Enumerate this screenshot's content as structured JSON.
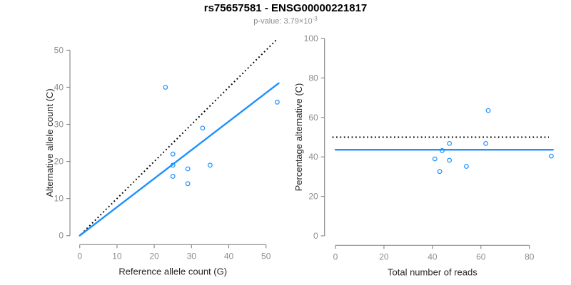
{
  "header": {
    "title": "rs75657581 - ENSG00000221817",
    "pvalue_base": "p-value: 3.79×10",
    "pvalue_exponent": "-3"
  },
  "colors": {
    "accent_blue": "#1E90FF",
    "dotted_black": "#000000",
    "axis_gray": "#8c8c8c",
    "tick_label_gray": "#8c8c8c",
    "axis_title_dark": "#262626",
    "subtitle_gray": "#8c8c8c"
  },
  "chart_data": [
    {
      "id": "allele-counts",
      "type": "scatter",
      "marker": "open-circle",
      "xlabel": "Reference allele count (G)",
      "ylabel": "Alternative allele count (C)",
      "xticks": [
        0,
        10,
        20,
        30,
        40,
        50
      ],
      "yticks": [
        0,
        10,
        20,
        30,
        40,
        50
      ],
      "xlim": [
        0,
        53.5
      ],
      "ylim": [
        0,
        53.5
      ],
      "grid": false,
      "points": [
        [
          23,
          40
        ],
        [
          53,
          36
        ],
        [
          33,
          29
        ],
        [
          25,
          22
        ],
        [
          25,
          19
        ],
        [
          35,
          19
        ],
        [
          29,
          18
        ],
        [
          25,
          16
        ],
        [
          29,
          14
        ]
      ],
      "lines": [
        {
          "name": "identity-line",
          "style": "dotted",
          "color": "#000000",
          "from": [
            0.4,
            0.4
          ],
          "to": [
            52.8,
            52.8
          ]
        },
        {
          "name": "fit-line",
          "style": "solid",
          "color": "#1E90FF",
          "from": [
            0,
            0
          ],
          "to": [
            53.4,
            41.1
          ]
        }
      ]
    },
    {
      "id": "percentage-reads",
      "type": "scatter",
      "marker": "open-circle",
      "xlabel": "Total number of reads",
      "ylabel": "Percentage alternative (C)",
      "xticks": [
        0,
        20,
        40,
        60,
        80
      ],
      "yticks": [
        0,
        20,
        40,
        60,
        80,
        100
      ],
      "xlim": [
        0,
        90
      ],
      "ylim": [
        0,
        100
      ],
      "grid": false,
      "points": [
        [
          63,
          63.5
        ],
        [
          89,
          40.4
        ],
        [
          62,
          46.8
        ],
        [
          47,
          46.8
        ],
        [
          44,
          43.2
        ],
        [
          47,
          38.3
        ],
        [
          54,
          35.2
        ],
        [
          41,
          39.0
        ],
        [
          43,
          32.6
        ]
      ],
      "lines": [
        {
          "name": "expected-50pct-line",
          "style": "dotted",
          "color": "#000000",
          "from": [
            -1.3,
            50
          ],
          "to": [
            88,
            50
          ]
        },
        {
          "name": "mean-pct-line",
          "style": "solid",
          "color": "#1E90FF",
          "from": [
            0,
            43.6
          ],
          "to": [
            89.7,
            43.6
          ]
        }
      ]
    }
  ]
}
